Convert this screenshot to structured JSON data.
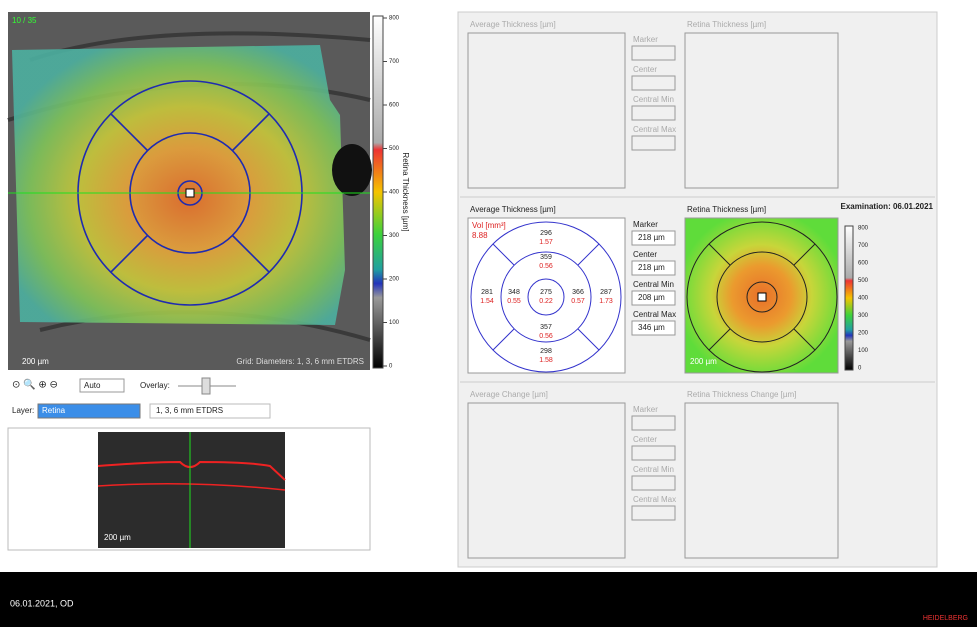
{
  "fundus": {
    "counter": "10 / 35",
    "scale_bar": "200 µm",
    "grid_caption": "Grid: Diameters: 1, 3, 6 mm ETDRS",
    "colorbar_title": "Retina Thickness [µm]",
    "colorbar_labels": [
      "800",
      "700",
      "600",
      "500",
      "400",
      "300",
      "200",
      "100",
      "0"
    ]
  },
  "toolbar": {
    "zoom": "Auto",
    "overlay": "Overlay:",
    "layer_label": "Layer:",
    "layer": "Retina",
    "grid": "1, 3, 6 mm ETDRS"
  },
  "bscan": {
    "scale_bar": "200 µm"
  },
  "panels": [
    {
      "left_title": "Average Thickness [µm]",
      "fields": [
        {
          "label": "Marker"
        },
        {
          "label": "Center"
        },
        {
          "label": "Central Min"
        },
        {
          "label": "Central Max"
        }
      ],
      "right_title": "Retina Thickness [µm]"
    },
    {
      "left_title": "Average Thickness [µm]",
      "fields": [
        {
          "label": "Marker",
          "value": "218 µm"
        },
        {
          "label": "Center",
          "value": "218 µm"
        },
        {
          "label": "Central Min",
          "value": "208 µm"
        },
        {
          "label": "Central Max",
          "value": "346 µm"
        }
      ],
      "right_title": "Retina Thickness [µm]",
      "examination": "Examination: 06.01.2021",
      "vol_label": "Vol [mm³]",
      "total_volume": "8.88",
      "sectors": [
        {
          "thickness": "296",
          "volume": "1.57"
        },
        {
          "thickness": "359",
          "volume": "0.56"
        },
        {
          "thickness": "281",
          "volume": "1.54"
        },
        {
          "thickness": "348",
          "volume": "0.55"
        },
        {
          "thickness": "275",
          "volume": "0.22"
        },
        {
          "thickness": "366",
          "volume": "0.57"
        },
        {
          "thickness": "287",
          "volume": "1.73"
        },
        {
          "thickness": "357",
          "volume": "0.56"
        },
        {
          "thickness": "298",
          "volume": "1.58"
        }
      ],
      "scale_bar": "200 µm",
      "colorbar_labels": [
        "800",
        "700",
        "600",
        "500",
        "400",
        "300",
        "200",
        "100",
        "0"
      ]
    },
    {
      "left_title": "Average Change [µm]",
      "fields": [
        {
          "label": "Marker"
        },
        {
          "label": "Center"
        },
        {
          "label": "Central Min"
        },
        {
          "label": "Central Max"
        }
      ],
      "right_title": "Retina Thickness Change [µm]"
    }
  ],
  "footer": {
    "exam": "06.01.2021, OD",
    "brand": "HEIDELBERG"
  }
}
